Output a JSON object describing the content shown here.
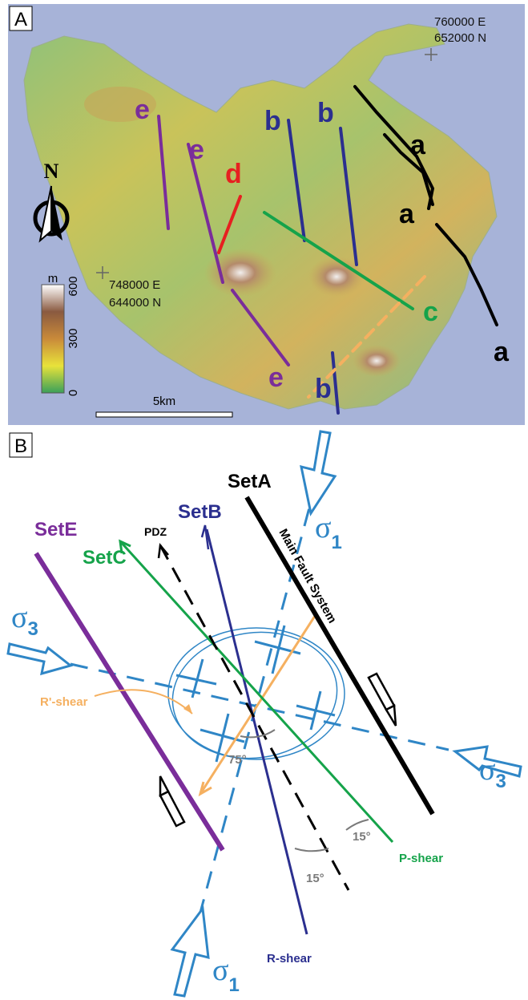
{
  "panel_a": {
    "label": "A",
    "grid_ref_ne": {
      "easting": "760000 E",
      "northing": "652000 N"
    },
    "grid_ref_sw": {
      "easting": "748000 E",
      "northing": "644000 N"
    },
    "north": "N",
    "elevation_legend": {
      "unit": "m",
      "ticks": [
        "600",
        "300",
        "0"
      ]
    },
    "scale_bar": "5km",
    "fault_labels": [
      "e",
      "e",
      "e",
      "d",
      "b",
      "b",
      "b",
      "c",
      "a",
      "a",
      "a"
    ]
  },
  "panel_b": {
    "label": "B",
    "sets": [
      "SetA",
      "SetB",
      "SetC",
      "SetE"
    ],
    "pdz": "PDZ",
    "main_fault": "Main Fault System",
    "stress_labels": [
      {
        "symbol": "σ",
        "subscript": "1"
      },
      {
        "symbol": "σ",
        "subscript": "1"
      },
      {
        "symbol": "σ",
        "subscript": "3"
      },
      {
        "symbol": "σ",
        "subscript": "3"
      }
    ],
    "r_prime_shear": "R'-shear",
    "angles": [
      "75°",
      "15°",
      "15°"
    ],
    "p_shear": "P-shear",
    "r_shear": "R-shear"
  }
}
